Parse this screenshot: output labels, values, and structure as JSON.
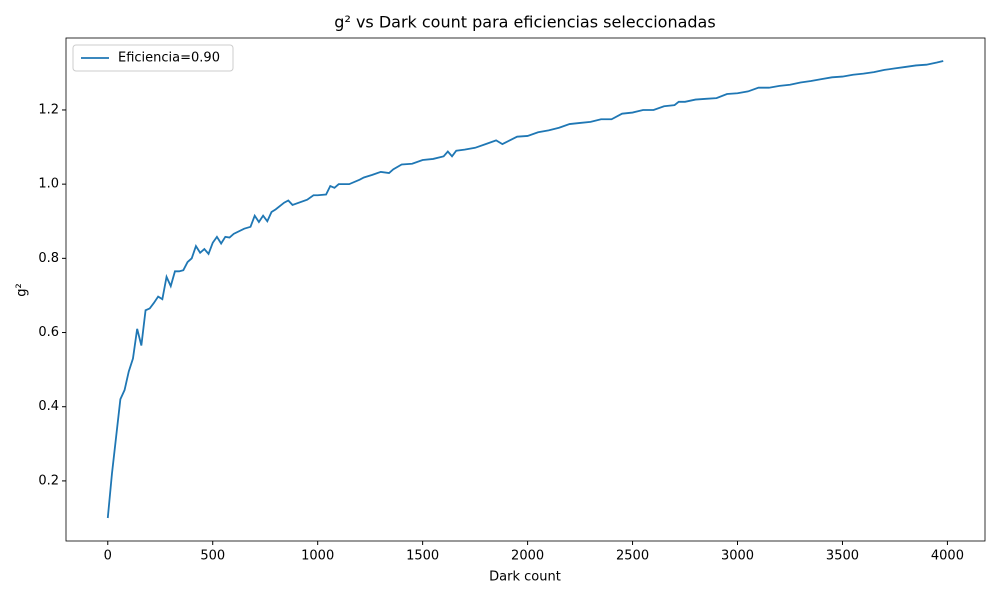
{
  "chart_data": {
    "type": "line",
    "title": "g² vs Dark count para eficiencias seleccionadas",
    "x_label": "Dark count",
    "y_label": "g²",
    "x": [
      0,
      20,
      40,
      60,
      80,
      100,
      120,
      140,
      160,
      180,
      200,
      220,
      240,
      260,
      280,
      300,
      320,
      340,
      360,
      380,
      400,
      420,
      440,
      460,
      480,
      500,
      520,
      540,
      560,
      580,
      600,
      650,
      680,
      700,
      720,
      740,
      760,
      780,
      800,
      840,
      860,
      880,
      950,
      980,
      1000,
      1040,
      1060,
      1080,
      1100,
      1150,
      1200,
      1220,
      1260,
      1300,
      1340,
      1360,
      1400,
      1450,
      1500,
      1550,
      1600,
      1620,
      1640,
      1660,
      1700,
      1750,
      1800,
      1850,
      1880,
      1950,
      2000,
      2050,
      2100,
      2150,
      2200,
      2250,
      2300,
      2350,
      2400,
      2450,
      2500,
      2550,
      2600,
      2650,
      2700,
      2720,
      2750,
      2800,
      2850,
      2900,
      2950,
      3000,
      3050,
      3100,
      3150,
      3200,
      3250,
      3300,
      3350,
      3400,
      3450,
      3500,
      3550,
      3600,
      3650,
      3700,
      3750,
      3800,
      3850,
      3900,
      3950,
      3980
    ],
    "series": [
      {
        "name": "Eficiencia=0.90",
        "color": "#1f77b4",
        "values": [
          0.1,
          0.22,
          0.32,
          0.42,
          0.445,
          0.495,
          0.53,
          0.61,
          0.565,
          0.66,
          0.665,
          0.68,
          0.697,
          0.69,
          0.75,
          0.725,
          0.765,
          0.765,
          0.768,
          0.79,
          0.8,
          0.833,
          0.815,
          0.825,
          0.812,
          0.842,
          0.858,
          0.84,
          0.858,
          0.856,
          0.866,
          0.88,
          0.885,
          0.915,
          0.898,
          0.915,
          0.9,
          0.925,
          0.932,
          0.95,
          0.956,
          0.944,
          0.958,
          0.97,
          0.97,
          0.972,
          0.995,
          0.99,
          1.0,
          1.0,
          1.012,
          1.018,
          1.025,
          1.033,
          1.03,
          1.04,
          1.053,
          1.055,
          1.065,
          1.068,
          1.075,
          1.088,
          1.075,
          1.09,
          1.093,
          1.098,
          1.108,
          1.118,
          1.108,
          1.128,
          1.13,
          1.14,
          1.145,
          1.152,
          1.162,
          1.165,
          1.168,
          1.175,
          1.175,
          1.19,
          1.193,
          1.2,
          1.2,
          1.21,
          1.213,
          1.222,
          1.222,
          1.228,
          1.23,
          1.232,
          1.243,
          1.245,
          1.25,
          1.26,
          1.26,
          1.265,
          1.268,
          1.274,
          1.278,
          1.283,
          1.288,
          1.29,
          1.295,
          1.298,
          1.302,
          1.308,
          1.312,
          1.316,
          1.32,
          1.322,
          1.328,
          1.332
        ]
      }
    ],
    "xlim": [
      -199,
      4179
    ],
    "ylim": [
      0.038,
      1.394
    ],
    "xticks": [
      0,
      500,
      1000,
      1500,
      2000,
      2500,
      3000,
      3500,
      4000
    ],
    "yticks": [
      0.2,
      0.4,
      0.6,
      0.8,
      {
        "value": 1,
        "label": "1.0"
      },
      1.2
    ],
    "grid": false,
    "legend": "upper left"
  }
}
